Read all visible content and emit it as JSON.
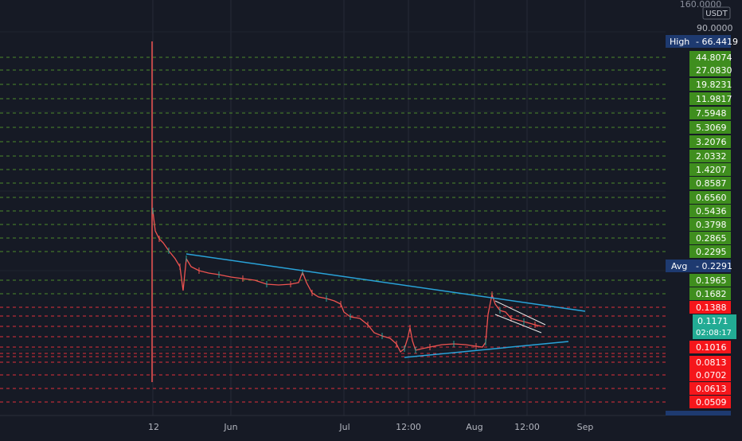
{
  "currency_label": "USDT",
  "top_price": "160.0000",
  "first_tick": "90.0000",
  "high_tag": {
    "label": "High",
    "value": "66.4419"
  },
  "avg_tag": {
    "label": "Avg",
    "value": "0.2291"
  },
  "last_price": {
    "value": "0.1171",
    "countdown": "02:08:17"
  },
  "colors": {
    "background": "#161a25",
    "green_line": "#4c8a2a",
    "green_label": "#3f8e1e",
    "red_line": "#e0303a",
    "red_label": "#f5161b",
    "blue_label": "#1e3a70",
    "trendline": "#29a3d9",
    "last_price_label": "#22ab94",
    "candle_up": "#26a69a",
    "candle_down": "#ef5350"
  },
  "chart_data": {
    "type": "candlestick",
    "title": "",
    "xlabel": "",
    "ylabel": "",
    "x_ticks": [
      "12",
      "Jun",
      "Jul",
      "12:00",
      "Aug",
      "12:00",
      "Sep"
    ],
    "y_scale": "log",
    "price_levels": {
      "green": [
        "44.8074",
        "27.0830",
        "19.8231",
        "11.9817",
        "7.5948",
        "5.3069",
        "3.2076",
        "2.0332",
        "1.4207",
        "0.8587",
        "0.6560",
        "0.5436",
        "0.3798",
        "0.2865",
        "0.2295",
        "0.1965",
        "0.1682"
      ],
      "red": [
        "0.1388",
        "0.1016",
        "0.0813",
        "0.0702",
        "0.0613",
        "0.0509"
      ]
    },
    "trendlines": [
      {
        "name": "",
        "from": "0.22",
        "to": "0.14"
      },
      {
        "name": "",
        "from": "0.085",
        "to": "0.103"
      }
    ]
  }
}
